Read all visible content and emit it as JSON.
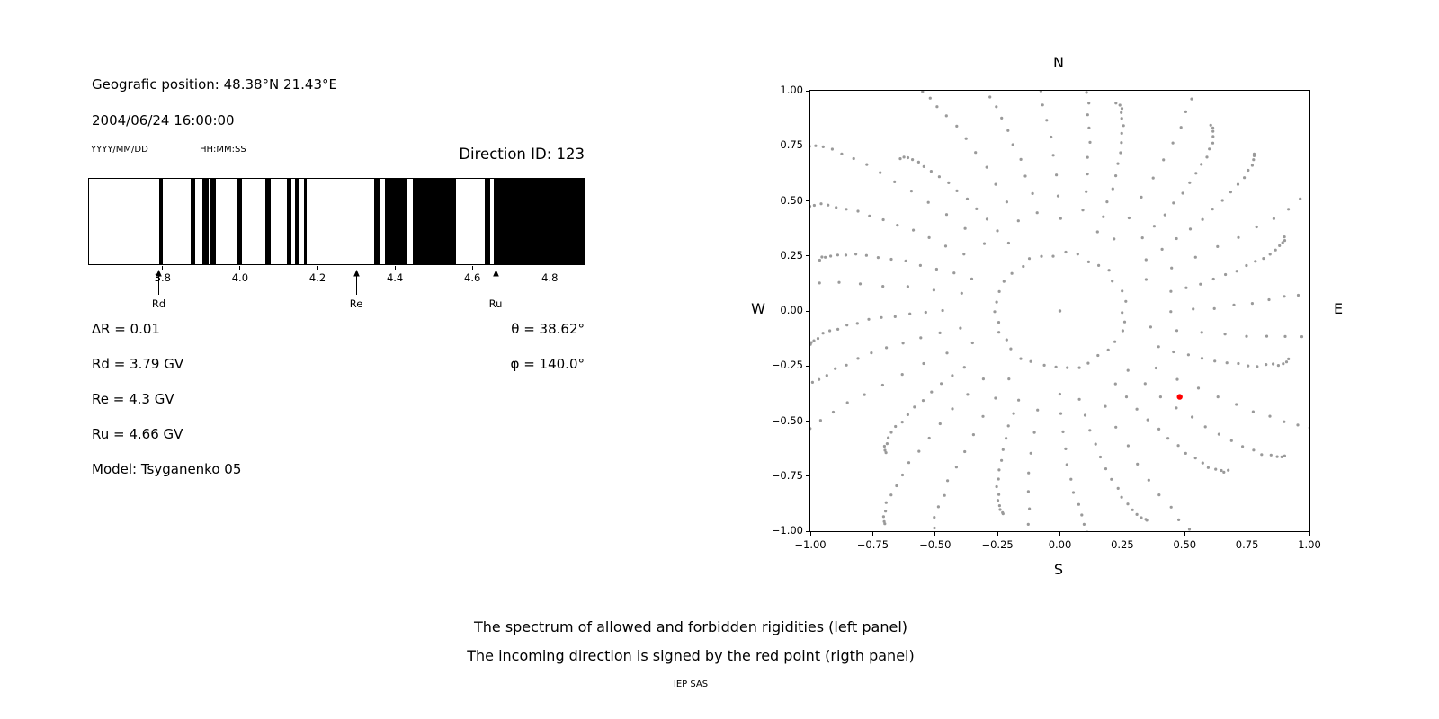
{
  "left_panel": {
    "position_label": "Geografic position: 48.38°N 21.43°E",
    "datetime": "2004/06/24 16:00:00",
    "date_format_label": "YYYY/MM/DD",
    "time_format_label": "HH:MM:SS",
    "direction_id_label": "Direction ID: 123",
    "params_left": [
      "∆R = 0.01",
      "Rd = 3.79 GV",
      "Re = 4.3 GV",
      "Ru = 4.66 GV",
      "Model: Tsyganenko 05"
    ],
    "params_right": [
      "θ = 38.62°",
      "φ = 140.0°"
    ]
  },
  "right_panel": {
    "compass": {
      "top": "N",
      "bottom": "S",
      "left": "W",
      "right": "E"
    }
  },
  "caption": {
    "line1": "The spectrum of allowed and forbidden rigidities (left panel)",
    "line2": "The incoming direction is signed by the red point (rigth panel)",
    "credit": "IEP SAS"
  },
  "colors": {
    "allowed_band": "#000000",
    "gray_dot": "#9a9a9a",
    "red_point": "#ff0000",
    "frame": "#000000"
  },
  "chart_data": [
    {
      "type": "bar",
      "panel": "left",
      "description": "Spectrum of allowed (black) and forbidden (white) rigidities in GV",
      "xlim": [
        3.61,
        4.89
      ],
      "xticks": [
        3.8,
        4.0,
        4.2,
        4.4,
        4.6,
        4.8
      ],
      "allowed_bands_gv": [
        [
          3.79,
          3.801
        ],
        [
          3.872,
          3.884
        ],
        [
          3.902,
          3.919
        ],
        [
          3.923,
          3.937
        ],
        [
          3.991,
          4.005
        ],
        [
          4.065,
          4.079
        ],
        [
          4.121,
          4.133
        ],
        [
          4.142,
          4.151
        ],
        [
          4.165,
          4.172
        ],
        [
          4.347,
          4.36
        ],
        [
          4.374,
          4.433
        ],
        [
          4.447,
          4.558
        ],
        [
          4.633,
          4.647
        ],
        [
          4.656,
          4.89
        ]
      ],
      "cutoffs": [
        {
          "label": "Rd",
          "value_gv": 3.79
        },
        {
          "label": "Re",
          "value_gv": 4.3
        },
        {
          "label": "Ru",
          "value_gv": 4.66
        }
      ]
    },
    {
      "type": "scatter",
      "panel": "right",
      "description": "Asymptotic directions: gray dotted radial spokes with inner ring; red point marks incoming direction",
      "xlim": [
        -1,
        1
      ],
      "ylim": [
        -1,
        1
      ],
      "xticks": [
        -1.0,
        -0.75,
        -0.5,
        -0.25,
        0.0,
        0.25,
        0.5,
        0.75,
        1.0
      ],
      "yticks": [
        -1.0,
        -0.75,
        -0.5,
        -0.25,
        0.0,
        0.25,
        0.5,
        0.75,
        1.0
      ],
      "center_point": {
        "x": 0,
        "y": 0
      },
      "red_point": {
        "x": 0.48,
        "y": -0.39
      },
      "gray_pattern": {
        "ring_radius": 0.26,
        "ring_count": 34,
        "spoke_count": 32,
        "points_per_spoke": 15,
        "spoke_r_start": 0.42,
        "spoke_r_end": 1.12,
        "spoke_r_end_variation": 0.18,
        "twist_deg": 9,
        "start_angle_deg": 90
      }
    }
  ]
}
